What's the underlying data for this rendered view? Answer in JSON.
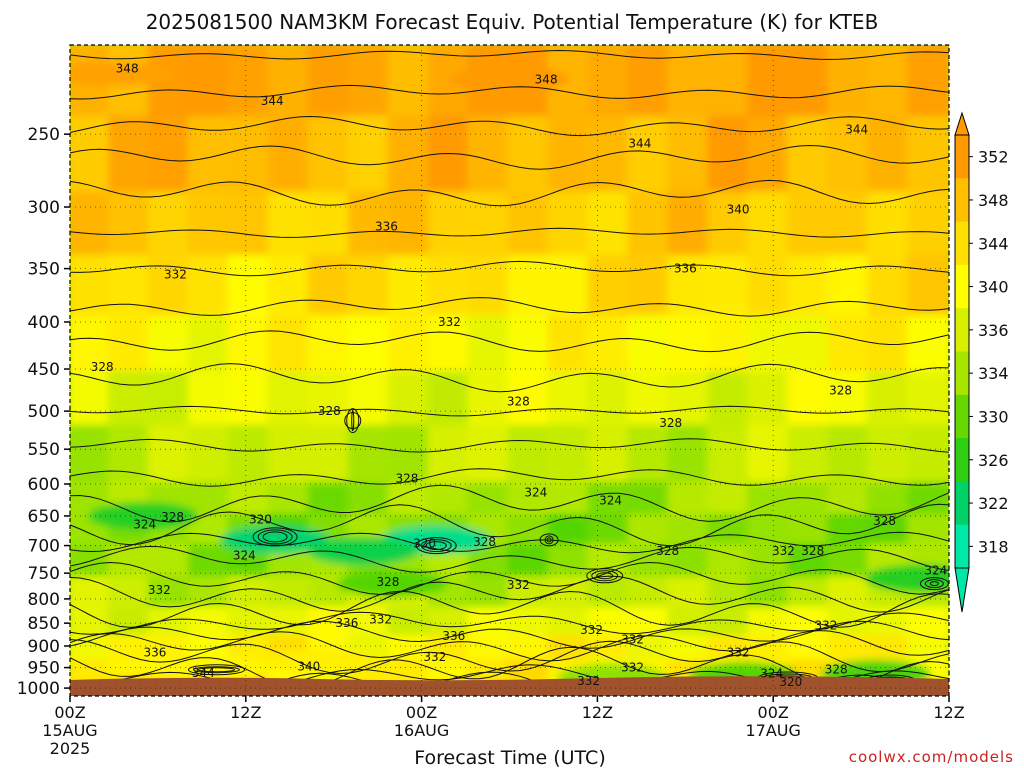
{
  "chart_data": {
    "type": "heatmap",
    "title": "2025081500 NAM3KM Forecast Equiv. Potential Temperature (K) for KTEB",
    "xlabel": "Forecast Time (UTC)",
    "ylabel": "",
    "credit": "coolwx.com/models",
    "y_axis": {
      "scale": "log-pressure",
      "range": [
        1020,
        200
      ],
      "ticks": [
        "250",
        "300",
        "350",
        "400",
        "450",
        "500",
        "550",
        "600",
        "650",
        "700",
        "750",
        "800",
        "850",
        "900",
        "950",
        "1000"
      ]
    },
    "x_axis": {
      "range_hours": [
        0,
        60
      ],
      "ticks": [
        {
          "label": "00Z",
          "sub1": "15AUG",
          "sub2": "2025"
        },
        {
          "label": "12Z",
          "sub1": "",
          "sub2": ""
        },
        {
          "label": "00Z",
          "sub1": "16AUG",
          "sub2": ""
        },
        {
          "label": "12Z",
          "sub1": "",
          "sub2": ""
        },
        {
          "label": "00Z",
          "sub1": "17AUG",
          "sub2": ""
        },
        {
          "label": "12Z",
          "sub1": "",
          "sub2": ""
        }
      ]
    },
    "grid": true,
    "colorbar": {
      "labels": [
        "352",
        "348",
        "344",
        "340",
        "336",
        "334",
        "330",
        "326",
        "322",
        "318"
      ],
      "colors": [
        "#ff9a00",
        "#ffbf00",
        "#ffe000",
        "#ffff00",
        "#d8f000",
        "#a8e600",
        "#66d800",
        "#2ecf10",
        "#00d268",
        "#00e8a8"
      ]
    },
    "contour_labels": [
      {
        "text": "348",
        "t": 3.9,
        "p": 212
      },
      {
        "text": "348",
        "t": 32.5,
        "p": 218
      },
      {
        "text": "344",
        "t": 13.8,
        "p": 230
      },
      {
        "text": "344",
        "t": 38.9,
        "p": 256
      },
      {
        "text": "344",
        "t": 53.7,
        "p": 247
      },
      {
        "text": "340",
        "t": 45.6,
        "p": 302
      },
      {
        "text": "336",
        "t": 21.6,
        "p": 315
      },
      {
        "text": "336",
        "t": 42.0,
        "p": 350
      },
      {
        "text": "332",
        "t": 7.2,
        "p": 355
      },
      {
        "text": "332",
        "t": 25.9,
        "p": 400
      },
      {
        "text": "328",
        "t": 2.2,
        "p": 448
      },
      {
        "text": "328",
        "t": 30.6,
        "p": 488
      },
      {
        "text": "328",
        "t": 17.7,
        "p": 500
      },
      {
        "text": "328",
        "t": 23.0,
        "p": 592
      },
      {
        "text": "328",
        "t": 41.0,
        "p": 515
      },
      {
        "text": "328",
        "t": 52.6,
        "p": 475
      },
      {
        "text": "324",
        "t": 31.8,
        "p": 613
      },
      {
        "text": "324",
        "t": 36.9,
        "p": 625
      },
      {
        "text": "324",
        "t": 5.1,
        "p": 664
      },
      {
        "text": "328",
        "t": 7.0,
        "p": 652
      },
      {
        "text": "320",
        "t": 13.0,
        "p": 656
      },
      {
        "text": "320",
        "t": 24.2,
        "p": 696
      },
      {
        "text": "328",
        "t": 28.3,
        "p": 694
      },
      {
        "text": "324",
        "t": 11.9,
        "p": 718
      },
      {
        "text": "328",
        "t": 21.7,
        "p": 767
      },
      {
        "text": "328",
        "t": 40.8,
        "p": 710
      },
      {
        "text": "332",
        "t": 48.7,
        "p": 710
      },
      {
        "text": "328",
        "t": 50.7,
        "p": 710
      },
      {
        "text": "328",
        "t": 55.6,
        "p": 658
      },
      {
        "text": "324",
        "t": 59.1,
        "p": 745
      },
      {
        "text": "332",
        "t": 6.1,
        "p": 782
      },
      {
        "text": "332",
        "t": 30.6,
        "p": 773
      },
      {
        "text": "332",
        "t": 21.2,
        "p": 842
      },
      {
        "text": "336",
        "t": 18.9,
        "p": 850
      },
      {
        "text": "332",
        "t": 35.6,
        "p": 865
      },
      {
        "text": "336",
        "t": 26.2,
        "p": 878
      },
      {
        "text": "332",
        "t": 38.4,
        "p": 886
      },
      {
        "text": "332",
        "t": 51.6,
        "p": 855
      },
      {
        "text": "336",
        "t": 5.8,
        "p": 915
      },
      {
        "text": "332",
        "t": 24.9,
        "p": 925
      },
      {
        "text": "332",
        "t": 45.6,
        "p": 915
      },
      {
        "text": "340",
        "t": 16.3,
        "p": 947
      },
      {
        "text": "344",
        "t": 9.1,
        "p": 963
      },
      {
        "text": "332",
        "t": 38.4,
        "p": 950
      },
      {
        "text": "332",
        "t": 35.4,
        "p": 982
      },
      {
        "text": "324",
        "t": 47.9,
        "p": 964
      },
      {
        "text": "328",
        "t": 52.3,
        "p": 955
      },
      {
        "text": "320",
        "t": 49.2,
        "p": 985
      }
    ]
  }
}
